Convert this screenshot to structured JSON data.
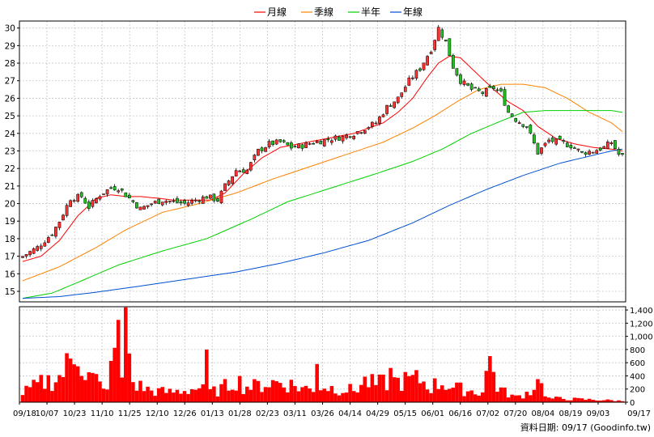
{
  "chart_data": {
    "type": "candlestick",
    "legend": [
      {
        "label": "月線",
        "color": "#ff0000"
      },
      {
        "label": "季線",
        "color": "#ff8000"
      },
      {
        "label": "半年",
        "color": "#00d000"
      },
      {
        "label": "年線",
        "color": "#0050d0"
      }
    ],
    "legend_position": "top-center",
    "grid": true,
    "price_axis": {
      "position": "left",
      "ylim": [
        14.4,
        30.4
      ],
      "ticks": [
        15,
        16,
        17,
        18,
        19,
        20,
        21,
        22,
        23,
        24,
        25,
        26,
        27,
        28,
        29,
        30
      ]
    },
    "volume_axis": {
      "position": "right",
      "ylim": [
        0,
        1450
      ],
      "ticks": [
        {
          "value": 0,
          "label": "0"
        },
        {
          "value": 200,
          "label": "200"
        },
        {
          "value": 400,
          "label": "400"
        },
        {
          "value": 600,
          "label": "600"
        },
        {
          "value": 800,
          "label": "800"
        },
        {
          "value": 1000,
          "label": "1,000"
        },
        {
          "value": 1200,
          "label": "1,200"
        },
        {
          "value": 1400,
          "label": "1,400"
        }
      ]
    },
    "x_labels": [
      "09/18",
      "10/07",
      "10/23",
      "11/10",
      "11/25",
      "12/10",
      "12/26",
      "01/13",
      "01/28",
      "02/23",
      "03/11",
      "03/26",
      "04/14",
      "04/29",
      "05/15",
      "06/01",
      "06/16",
      "07/02",
      "07/20",
      "08/04",
      "08/19",
      "09/03",
      "09/17"
    ],
    "close_anchors": [
      [
        0,
        17.0
      ],
      [
        4,
        17.5
      ],
      [
        8,
        18.3
      ],
      [
        10,
        19.0
      ],
      [
        13,
        20.3
      ],
      [
        16,
        20.4
      ],
      [
        18,
        19.8
      ],
      [
        21,
        20.5
      ],
      [
        24,
        20.9
      ],
      [
        26,
        20.9
      ],
      [
        29,
        20.3
      ],
      [
        32,
        19.7
      ],
      [
        35,
        20.0
      ],
      [
        38,
        20.2
      ],
      [
        41,
        20.1
      ],
      [
        44,
        20.0
      ],
      [
        47,
        20.2
      ],
      [
        50,
        20.4
      ],
      [
        53,
        20.2
      ],
      [
        55,
        21.0
      ],
      [
        58,
        21.9
      ],
      [
        61,
        21.9
      ],
      [
        64,
        23.0
      ],
      [
        67,
        23.4
      ],
      [
        70,
        23.5
      ],
      [
        73,
        23.2
      ],
      [
        76,
        23.3
      ],
      [
        79,
        23.5
      ],
      [
        82,
        23.6
      ],
      [
        84,
        23.7
      ],
      [
        87,
        23.8
      ],
      [
        90,
        24.0
      ],
      [
        93,
        24.3
      ],
      [
        96,
        24.6
      ],
      [
        99,
        25.5
      ],
      [
        102,
        26.0
      ],
      [
        105,
        27.0
      ],
      [
        108,
        27.7
      ],
      [
        111,
        28.8
      ],
      [
        113,
        30.0
      ],
      [
        115,
        29.2
      ],
      [
        117,
        27.8
      ],
      [
        119,
        27.0
      ],
      [
        122,
        26.5
      ],
      [
        125,
        26.3
      ],
      [
        128,
        26.6
      ],
      [
        130,
        26.3
      ],
      [
        132,
        25.2
      ],
      [
        134,
        24.8
      ],
      [
        137,
        24.4
      ],
      [
        140,
        22.9
      ],
      [
        143,
        23.6
      ],
      [
        146,
        23.5
      ],
      [
        149,
        23.3
      ],
      [
        152,
        22.9
      ],
      [
        155,
        23.0
      ],
      [
        158,
        23.2
      ],
      [
        160,
        23.5
      ],
      [
        162,
        22.8
      ],
      [
        163,
        22.7
      ]
    ],
    "moving_averages": {
      "月線": [
        [
          0,
          16.7
        ],
        [
          5,
          17.0
        ],
        [
          10,
          17.9
        ],
        [
          15,
          19.3
        ],
        [
          20,
          20.3
        ],
        [
          24,
          20.5
        ],
        [
          28,
          20.4
        ],
        [
          32,
          20.4
        ],
        [
          37,
          20.3
        ],
        [
          41,
          20.2
        ],
        [
          46,
          20.2
        ],
        [
          51,
          20.2
        ],
        [
          55,
          20.6
        ],
        [
          60,
          21.7
        ],
        [
          65,
          22.6
        ],
        [
          70,
          23.2
        ],
        [
          75,
          23.4
        ],
        [
          80,
          23.6
        ],
        [
          85,
          23.8
        ],
        [
          90,
          24.0
        ],
        [
          94,
          24.3
        ],
        [
          98,
          24.6
        ],
        [
          102,
          25.2
        ],
        [
          106,
          26.0
        ],
        [
          110,
          27.2
        ],
        [
          113,
          28.0
        ],
        [
          116,
          28.4
        ],
        [
          119,
          28.3
        ],
        [
          123,
          27.5
        ],
        [
          128,
          26.5
        ],
        [
          132,
          25.8
        ],
        [
          136,
          25.3
        ],
        [
          140,
          24.4
        ],
        [
          145,
          23.7
        ],
        [
          150,
          23.4
        ],
        [
          155,
          23.2
        ],
        [
          160,
          23.1
        ],
        [
          163,
          23.0
        ]
      ],
      "季線": [
        [
          0,
          15.6
        ],
        [
          10,
          16.4
        ],
        [
          20,
          17.5
        ],
        [
          28,
          18.5
        ],
        [
          38,
          19.5
        ],
        [
          48,
          20.0
        ],
        [
          58,
          20.6
        ],
        [
          68,
          21.4
        ],
        [
          78,
          22.1
        ],
        [
          88,
          22.8
        ],
        [
          98,
          23.5
        ],
        [
          106,
          24.3
        ],
        [
          112,
          25.0
        ],
        [
          118,
          25.8
        ],
        [
          124,
          26.5
        ],
        [
          130,
          26.8
        ],
        [
          136,
          26.8
        ],
        [
          142,
          26.6
        ],
        [
          148,
          26.0
        ],
        [
          154,
          25.2
        ],
        [
          160,
          24.6
        ],
        [
          163,
          24.1
        ]
      ],
      "半年": [
        [
          0,
          14.6
        ],
        [
          8,
          14.9
        ],
        [
          16,
          15.6
        ],
        [
          26,
          16.5
        ],
        [
          38,
          17.3
        ],
        [
          50,
          18.0
        ],
        [
          62,
          19.1
        ],
        [
          72,
          20.1
        ],
        [
          84,
          20.9
        ],
        [
          96,
          21.7
        ],
        [
          106,
          22.4
        ],
        [
          114,
          23.1
        ],
        [
          122,
          24.0
        ],
        [
          130,
          24.7
        ],
        [
          136,
          25.2
        ],
        [
          142,
          25.3
        ],
        [
          150,
          25.3
        ],
        [
          160,
          25.3
        ],
        [
          163,
          25.2
        ]
      ],
      "年線": [
        [
          0,
          14.6
        ],
        [
          10,
          14.7
        ],
        [
          20,
          14.95
        ],
        [
          32,
          15.3
        ],
        [
          45,
          15.7
        ],
        [
          58,
          16.1
        ],
        [
          70,
          16.6
        ],
        [
          82,
          17.2
        ],
        [
          94,
          17.9
        ],
        [
          106,
          18.9
        ],
        [
          116,
          19.9
        ],
        [
          126,
          20.8
        ],
        [
          136,
          21.6
        ],
        [
          146,
          22.3
        ],
        [
          154,
          22.7
        ],
        [
          160,
          23.0
        ],
        [
          163,
          23.1
        ]
      ]
    },
    "volume_anchors": [
      [
        0,
        150
      ],
      [
        5,
        300
      ],
      [
        10,
        400
      ],
      [
        13,
        650
      ],
      [
        15,
        900
      ],
      [
        17,
        450
      ],
      [
        20,
        350
      ],
      [
        22,
        180
      ],
      [
        24,
        480
      ],
      [
        26,
        1250
      ],
      [
        27,
        300
      ],
      [
        28,
        1400
      ],
      [
        30,
        300
      ],
      [
        35,
        180
      ],
      [
        40,
        160
      ],
      [
        44,
        190
      ],
      [
        48,
        230
      ],
      [
        50,
        160
      ],
      [
        53,
        180
      ],
      [
        56,
        280
      ],
      [
        58,
        380
      ],
      [
        60,
        260
      ],
      [
        63,
        250
      ],
      [
        66,
        300
      ],
      [
        69,
        320
      ],
      [
        72,
        300
      ],
      [
        75,
        240
      ],
      [
        78,
        210
      ],
      [
        81,
        260
      ],
      [
        84,
        230
      ],
      [
        87,
        210
      ],
      [
        90,
        190
      ],
      [
        93,
        330
      ],
      [
        96,
        280
      ],
      [
        99,
        320
      ],
      [
        102,
        330
      ],
      [
        105,
        350
      ],
      [
        108,
        360
      ],
      [
        111,
        250
      ],
      [
        114,
        320
      ],
      [
        117,
        230
      ],
      [
        120,
        200
      ],
      [
        123,
        170
      ],
      [
        125,
        160
      ],
      [
        127,
        700
      ],
      [
        129,
        250
      ],
      [
        131,
        160
      ],
      [
        134,
        80
      ],
      [
        136,
        120
      ],
      [
        138,
        180
      ],
      [
        140,
        350
      ],
      [
        143,
        60
      ],
      [
        146,
        60
      ],
      [
        150,
        50
      ],
      [
        155,
        40
      ],
      [
        160,
        30
      ],
      [
        163,
        20
      ]
    ],
    "volume_spikes": [
      [
        26,
        1250
      ],
      [
        28,
        1440
      ],
      [
        50,
        800
      ],
      [
        80,
        580
      ],
      [
        100,
        520
      ],
      [
        127,
        700
      ],
      [
        140,
        350
      ]
    ],
    "bar_count": 164,
    "source_text": "資料日期: 09/17 (Goodinfo.tw)"
  }
}
